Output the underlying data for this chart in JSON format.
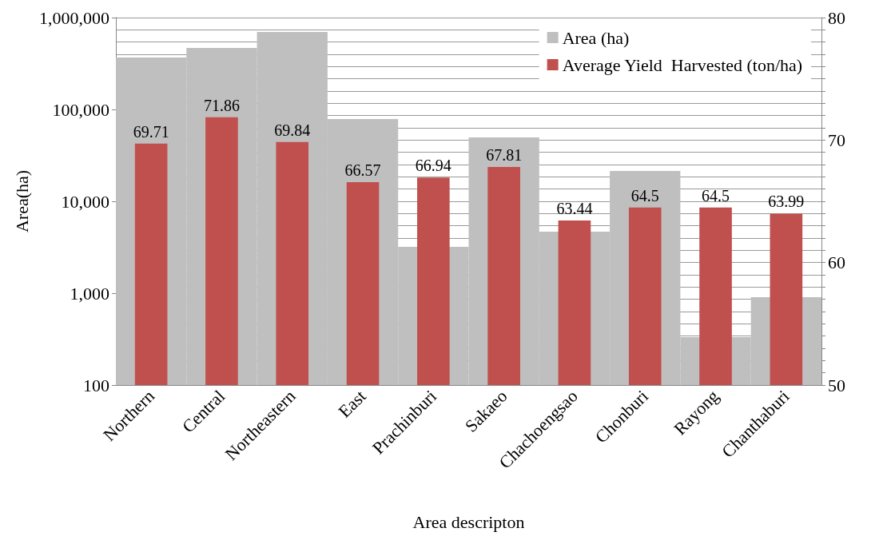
{
  "chart_data": {
    "type": "bar",
    "xlabel": "Area descripton",
    "ylabel": "Area(ha)",
    "categories": [
      "Northern",
      "Central",
      "Northeastern",
      "East",
      "Prachinburi",
      "Sakaeo",
      "Chachoengsao",
      "Chonburi",
      "Rayong",
      "Chanthaburi"
    ],
    "series": [
      {
        "name": "Area (ha)",
        "color": "#bfbfbf",
        "values": [
          367000,
          468000,
          697000,
          78700,
          3190,
          49700,
          4670,
          21400,
          333,
          906
        ]
      },
      {
        "name": "Average Yield  Harvested (ton/ha)",
        "color": "#c0504d",
        "axis": "y2",
        "data_labels": true,
        "values": [
          69.71,
          71.86,
          69.84,
          66.57,
          66.94,
          67.81,
          63.44,
          64.5,
          64.5,
          63.99
        ]
      }
    ],
    "log": "y",
    "ylim": [
      100,
      1000000
    ],
    "yticks": [
      {
        "value": 100,
        "label": "100"
      },
      {
        "value": 1000,
        "label": "1,000"
      },
      {
        "value": 10000,
        "label": "10,000"
      },
      {
        "value": 100000,
        "label": "100,000"
      },
      {
        "value": 1000000,
        "label": "1,000,000"
      }
    ],
    "y2lim": [
      50,
      80
    ],
    "y2ticks": [
      50,
      {
        "value": 51,
        "label": null
      },
      {
        "value": 52,
        "label": null
      },
      {
        "value": 53,
        "label": null
      },
      {
        "value": 54,
        "label": null
      },
      {
        "value": 55,
        "label": null
      },
      {
        "value": 56,
        "label": null
      },
      {
        "value": 57,
        "label": null
      },
      {
        "value": 58,
        "label": null
      },
      {
        "value": 59,
        "label": null
      },
      60,
      {
        "value": 61,
        "label": null
      },
      {
        "value": 62,
        "label": null
      },
      {
        "value": 63,
        "label": null
      },
      {
        "value": 64,
        "label": null
      },
      {
        "value": 65,
        "label": null
      },
      {
        "value": 66,
        "label": null
      },
      {
        "value": 67,
        "label": null
      },
      {
        "value": 68,
        "label": null
      },
      {
        "value": 69,
        "label": null
      },
      70,
      {
        "value": 71,
        "label": null
      },
      {
        "value": 72,
        "label": null
      },
      {
        "value": 73,
        "label": null
      },
      {
        "value": 74,
        "label": null
      },
      {
        "value": 75,
        "label": null
      },
      {
        "value": 76,
        "label": null
      },
      {
        "value": 77,
        "label": null
      },
      {
        "value": 78,
        "label": null
      },
      {
        "value": 79,
        "label": null
      },
      80
    ],
    "grid": "y2",
    "legend": "top right"
  }
}
